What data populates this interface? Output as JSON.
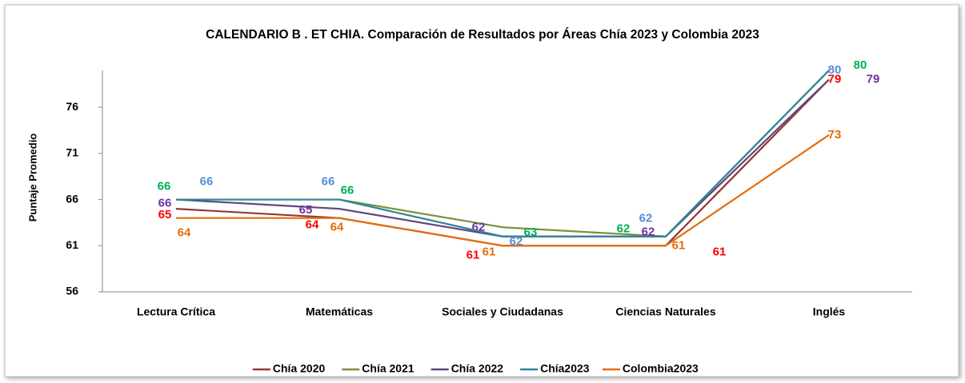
{
  "chart_data": {
    "type": "line",
    "title": "CALENDARIO  B . ET CHIA. Comparación de Resultados por Áreas  Chía 2023  y Colombia 2023",
    "y_label": "Puntaje Promedio",
    "categories": [
      "Lectura Crítica",
      "Matemáticas",
      "Sociales y Ciudadanas",
      "Ciencias Naturales",
      "Inglés"
    ],
    "series": [
      {
        "name": "Chía 2020",
        "color": "#953735",
        "label_color": "#ff0000",
        "values": [
          65,
          64,
          61,
          61,
          79
        ]
      },
      {
        "name": "Chía 2021",
        "color": "#77933c",
        "label_color": "#00b050",
        "values": [
          66,
          66,
          63,
          62,
          80
        ]
      },
      {
        "name": "Chía 2022",
        "color": "#604a7b",
        "label_color": "#7030a0",
        "values": [
          66,
          65,
          62,
          62,
          79
        ]
      },
      {
        "name": "Chía2023",
        "color": "#31849b",
        "label_color": "#558ed5",
        "values": [
          66,
          66,
          62,
          62,
          80
        ]
      },
      {
        "name": "Colombia2023",
        "color": "#e46c0a",
        "label_color": "#e46c0a",
        "values": [
          64,
          64,
          61,
          61,
          73
        ]
      }
    ],
    "ylim": [
      56,
      80
    ],
    "yticks": [
      56,
      61,
      66,
      71,
      76
    ],
    "grid": false,
    "legend": "bottom"
  }
}
